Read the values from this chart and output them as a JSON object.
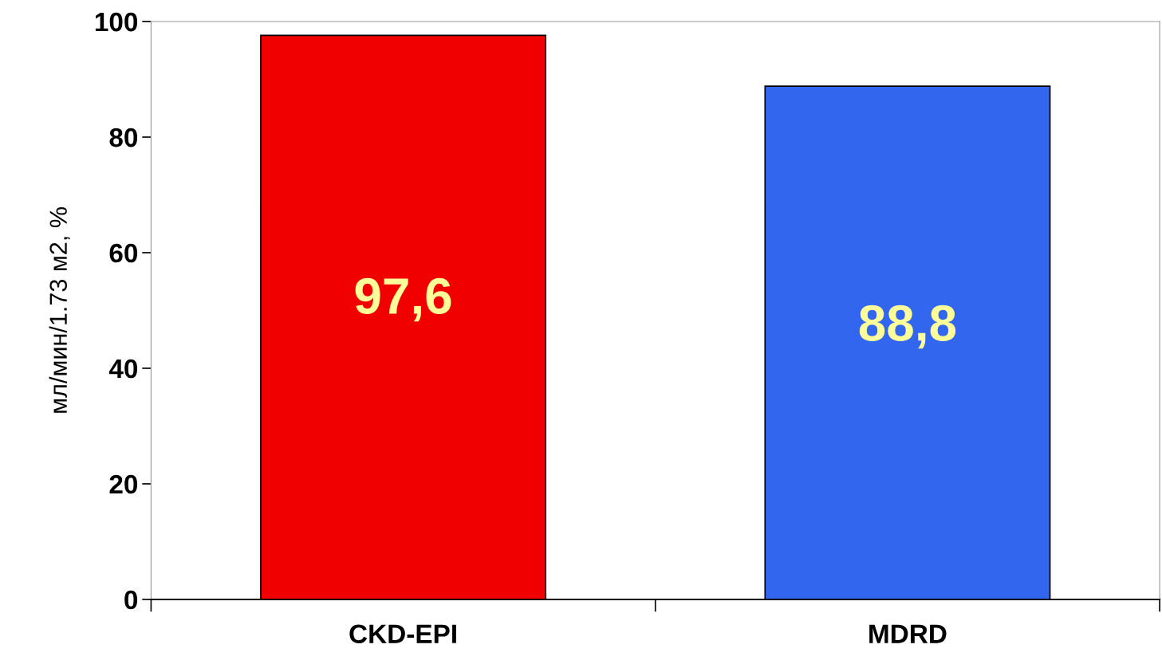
{
  "chart_data": {
    "type": "bar",
    "ylabel": "мл/мин/1.73 м2, %",
    "categories": [
      "CKD-EPI",
      "MDRD"
    ],
    "values": [
      97.6,
      88.8
    ],
    "colors": [
      "#f00000",
      "#3366ee"
    ],
    "value_labels": [
      "97,6",
      "88,8"
    ],
    "ylim": [
      0,
      100
    ],
    "yticks": [
      0,
      20,
      40,
      60,
      80,
      100
    ],
    "grid": false,
    "legend": false
  }
}
